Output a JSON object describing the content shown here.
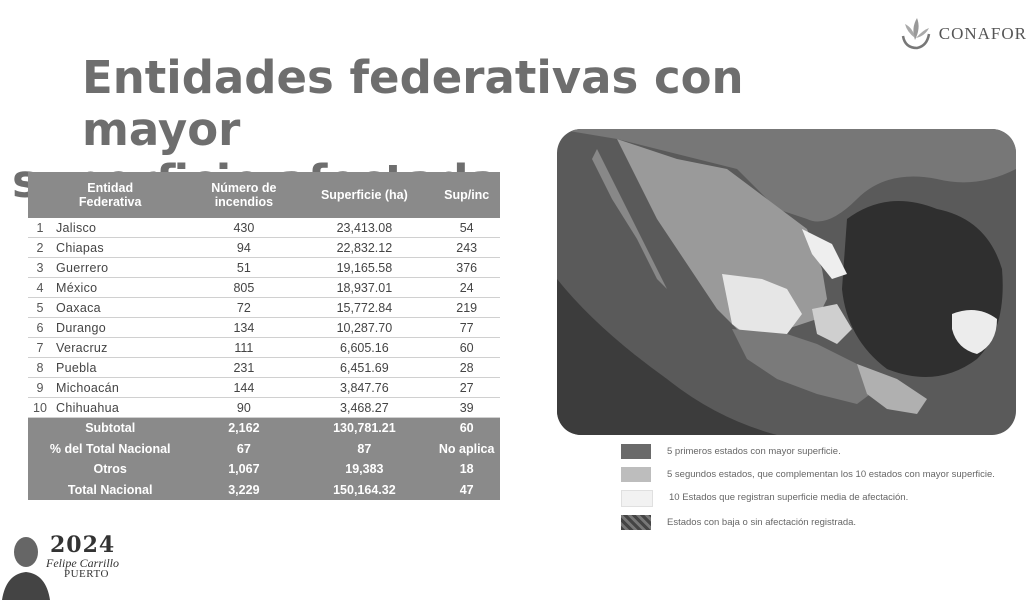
{
  "title": {
    "line1": "Entidades federativas con mayor",
    "line2": "superficie afectada"
  },
  "logo": {
    "name": "CONAFOR"
  },
  "table": {
    "headers": [
      "Entidad\nFederativa",
      "Número de\nincendios",
      "Superficie (ha)",
      "Sup/inc"
    ],
    "rows": [
      {
        "n": "1",
        "entidad": "Jalisco",
        "incendios": "430",
        "superficie": "23,413.08",
        "supinc": "54"
      },
      {
        "n": "2",
        "entidad": "Chiapas",
        "incendios": "94",
        "superficie": "22,832.12",
        "supinc": "243"
      },
      {
        "n": "3",
        "entidad": "Guerrero",
        "incendios": "51",
        "superficie": "19,165.58",
        "supinc": "376"
      },
      {
        "n": "4",
        "entidad": "México",
        "incendios": "805",
        "superficie": "18,937.01",
        "supinc": "24"
      },
      {
        "n": "5",
        "entidad": "Oaxaca",
        "incendios": "72",
        "superficie": "15,772.84",
        "supinc": "219"
      },
      {
        "n": "6",
        "entidad": "Durango",
        "incendios": "134",
        "superficie": "10,287.70",
        "supinc": "77"
      },
      {
        "n": "7",
        "entidad": "Veracruz",
        "incendios": "111",
        "superficie": "6,605.16",
        "supinc": "60"
      },
      {
        "n": "8",
        "entidad": "Puebla",
        "incendios": "231",
        "superficie": "6,451.69",
        "supinc": "28"
      },
      {
        "n": "9",
        "entidad": "Michoacán",
        "incendios": "144",
        "superficie": "3,847.76",
        "supinc": "27"
      },
      {
        "n": "10",
        "entidad": "Chihuahua",
        "incendios": "90",
        "superficie": "3,468.27",
        "supinc": "39"
      }
    ],
    "footer": [
      {
        "label": "Subtotal",
        "incendios": "2,162",
        "superficie": "130,781.21",
        "supinc": "60"
      },
      {
        "label": "% del Total Nacional",
        "incendios": "67",
        "superficie": "87",
        "supinc": "No aplica"
      },
      {
        "label": "Otros",
        "incendios": "1,067",
        "superficie": "19,383",
        "supinc": "18"
      },
      {
        "label": "Total Nacional",
        "incendios": "3,229",
        "superficie": "150,164.32",
        "supinc": "47"
      }
    ]
  },
  "legend": [
    {
      "color": "#6a6a6a",
      "text": "5 primeros estados con mayor superficie."
    },
    {
      "color": "#bdbdbd",
      "text": "5 segundos estados, que complementan los 10 estados con mayor superficie."
    },
    {
      "color": "#f2f2f2",
      "text": "10 Estados que registran superficie media de afectación."
    },
    {
      "color": "#555555",
      "text": "Estados con baja o sin afectación registrada."
    }
  ],
  "footer_logo": {
    "year": "2024",
    "name1": "Felipe Carrillo",
    "name2": "PUERTO"
  }
}
